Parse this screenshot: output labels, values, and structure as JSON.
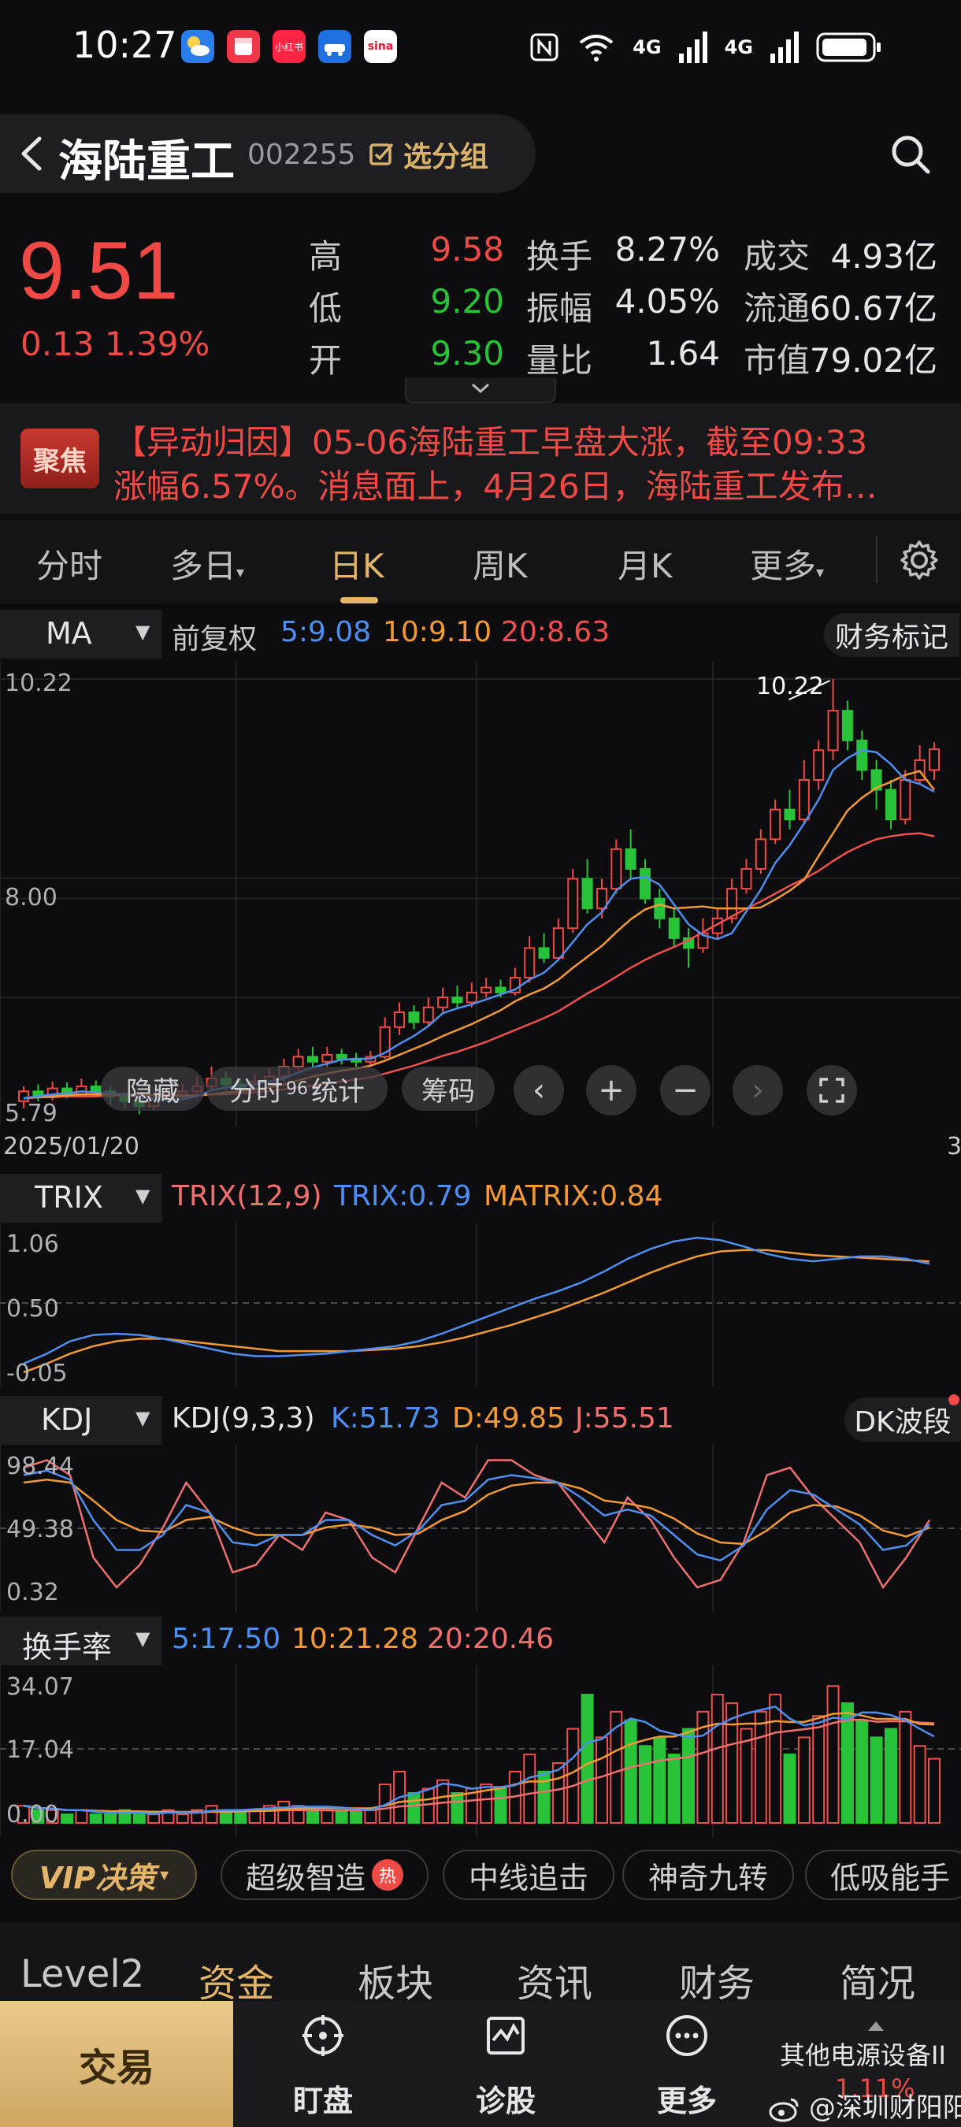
{
  "status_bar": {
    "time": "10:27",
    "net1": "4G",
    "net2": "4G",
    "notif_icons": [
      "weather-app-icon",
      "xiaohongshu-note-icon",
      "xiaohongshu-icon",
      "autohome-icon",
      "sina-icon"
    ],
    "sina_label": "sina",
    "xhs_label": "小红书"
  },
  "header": {
    "stock_name": "海陆重工",
    "stock_code": "002255",
    "group_label": "选分组"
  },
  "quote": {
    "price": "9.51",
    "change": "0.13",
    "change_pct": "1.39%",
    "stats": [
      {
        "k": "高",
        "v": "9.58",
        "tone": "up"
      },
      {
        "k": "换手",
        "v": "8.27%",
        "tone": "neutral"
      },
      {
        "k": "成交",
        "v": "4.93亿",
        "tone": "neutral"
      },
      {
        "k": "低",
        "v": "9.20",
        "tone": "down"
      },
      {
        "k": "振幅",
        "v": "4.05%",
        "tone": "neutral"
      },
      {
        "k": "流通",
        "v": "60.67亿",
        "tone": "neutral"
      },
      {
        "k": "开",
        "v": "9.30",
        "tone": "down"
      },
      {
        "k": "量比",
        "v": "1.64",
        "tone": "neutral"
      },
      {
        "k": "市值",
        "v": "79.02亿",
        "tone": "neutral"
      }
    ]
  },
  "news": {
    "badge": "聚焦",
    "line1": "【异动归因】05-06海陆重工早盘大涨，截至09:33",
    "line2": "涨幅6.57%。消息面上，4月26日，海陆重工发布…"
  },
  "period_tabs": {
    "tabs": [
      "分时",
      "多日",
      "日K",
      "周K",
      "月K",
      "更多"
    ],
    "active": "日K"
  },
  "kline": {
    "indicator": "MA",
    "adjust": "前复权",
    "ma5": "5:9.08",
    "ma10": "10:9.10",
    "ma20": "20:8.63",
    "finance_mark": "财务标记",
    "y_top": "10.22",
    "y_mid": "8.00",
    "y_bottom": "5.79",
    "high_label": "10.22",
    "start_date": "2025/01/20",
    "end_date_partial": "3",
    "overlay_buttons": [
      "隐藏",
      "分时",
      "统计",
      "筹码"
    ],
    "overlay_small": "96"
  },
  "trix": {
    "indicator": "TRIX",
    "params": "TRIX(12,9)",
    "trix_val": "TRIX:0.79",
    "matrix_val": "MATRIX:0.84",
    "y_top": "1.06",
    "y_mid": "0.50",
    "y_bottom": "-0.05"
  },
  "kdj": {
    "indicator": "KDJ",
    "params": "KDJ(9,3,3)",
    "k": "K:51.73",
    "d": "D:49.85",
    "j": "J:55.51",
    "dk_btn": "DK波段",
    "y_top": "98.44",
    "y_mid": "49.38",
    "y_bottom": "0.32"
  },
  "turnover": {
    "indicator": "换手率",
    "ma5": "5:17.50",
    "ma10": "10:21.28",
    "ma20": "20:20.46",
    "y_top": "34.07",
    "y_mid": "17.04",
    "y_bottom": "0.00"
  },
  "chart_data": {
    "type": "candlestick",
    "title": "",
    "y_range": [
      5.79,
      10.22
    ],
    "y_ticks": [
      "10.22",
      "8.00",
      "5.79"
    ],
    "x_labels": [
      "2025/01/20"
    ],
    "candles": [
      [
        5.95,
        6.05,
        6.1,
        5.88
      ],
      [
        6.05,
        6.0,
        6.12,
        5.95
      ],
      [
        6.0,
        6.08,
        6.15,
        5.96
      ],
      [
        6.08,
        6.02,
        6.14,
        5.98
      ],
      [
        6.02,
        6.1,
        6.18,
        5.99
      ],
      [
        6.1,
        6.05,
        6.16,
        6.0
      ],
      [
        6.05,
        6.0,
        6.1,
        5.92
      ],
      [
        6.0,
        5.95,
        6.05,
        5.88
      ],
      [
        5.95,
        5.9,
        6.0,
        5.82
      ],
      [
        5.9,
        5.98,
        6.04,
        5.86
      ],
      [
        5.98,
        6.02,
        6.08,
        5.94
      ],
      [
        6.02,
        6.05,
        6.12,
        5.98
      ],
      [
        6.05,
        6.1,
        6.2,
        6.0
      ],
      [
        6.1,
        6.18,
        6.3,
        6.05
      ],
      [
        6.18,
        6.12,
        6.25,
        6.06
      ],
      [
        6.12,
        6.08,
        6.18,
        6.02
      ],
      [
        6.08,
        6.15,
        6.22,
        6.04
      ],
      [
        6.15,
        6.2,
        6.28,
        6.1
      ],
      [
        6.2,
        6.3,
        6.38,
        6.15
      ],
      [
        6.3,
        6.4,
        6.48,
        6.26
      ],
      [
        6.4,
        6.35,
        6.5,
        6.3
      ],
      [
        6.35,
        6.42,
        6.5,
        6.3
      ],
      [
        6.42,
        6.38,
        6.48,
        6.32
      ],
      [
        6.38,
        6.35,
        6.44,
        6.3
      ],
      [
        6.35,
        6.4,
        6.46,
        6.32
      ],
      [
        6.4,
        6.7,
        6.8,
        6.38
      ],
      [
        6.7,
        6.85,
        6.95,
        6.62
      ],
      [
        6.85,
        6.75,
        6.92,
        6.68
      ],
      [
        6.75,
        6.9,
        7.0,
        6.7
      ],
      [
        6.9,
        7.0,
        7.1,
        6.85
      ],
      [
        7.0,
        6.95,
        7.12,
        6.88
      ],
      [
        6.95,
        7.05,
        7.15,
        6.9
      ],
      [
        7.05,
        7.1,
        7.2,
        7.0
      ],
      [
        7.1,
        7.05,
        7.18,
        7.0
      ],
      [
        7.05,
        7.2,
        7.3,
        7.02
      ],
      [
        7.2,
        7.5,
        7.62,
        7.15
      ],
      [
        7.5,
        7.4,
        7.65,
        7.35
      ],
      [
        7.4,
        7.7,
        7.8,
        7.38
      ],
      [
        7.7,
        8.2,
        8.3,
        7.65
      ],
      [
        8.2,
        7.9,
        8.4,
        7.85
      ],
      [
        7.9,
        8.1,
        8.2,
        7.8
      ],
      [
        8.1,
        8.5,
        8.6,
        8.05
      ],
      [
        8.5,
        8.3,
        8.7,
        8.2
      ],
      [
        8.3,
        8.0,
        8.4,
        7.95
      ],
      [
        8.0,
        7.8,
        8.1,
        7.7
      ],
      [
        7.8,
        7.6,
        7.9,
        7.5
      ],
      [
        7.6,
        7.5,
        7.7,
        7.3
      ],
      [
        7.5,
        7.65,
        7.8,
        7.45
      ],
      [
        7.65,
        7.8,
        7.9,
        7.6
      ],
      [
        7.8,
        8.1,
        8.2,
        7.75
      ],
      [
        8.1,
        8.3,
        8.4,
        8.05
      ],
      [
        8.3,
        8.6,
        8.7,
        8.25
      ],
      [
        8.6,
        8.9,
        9.0,
        8.55
      ],
      [
        8.9,
        8.8,
        9.1,
        8.7
      ],
      [
        8.8,
        9.2,
        9.4,
        8.75
      ],
      [
        9.2,
        9.5,
        9.6,
        9.1
      ],
      [
        9.5,
        9.9,
        10.22,
        9.4
      ],
      [
        9.9,
        9.6,
        10.0,
        9.5
      ],
      [
        9.6,
        9.3,
        9.7,
        9.2
      ],
      [
        9.3,
        9.1,
        9.4,
        8.9
      ],
      [
        9.1,
        8.8,
        9.2,
        8.7
      ],
      [
        8.8,
        9.2,
        9.3,
        8.75
      ],
      [
        9.2,
        9.4,
        9.55,
        9.15
      ],
      [
        9.3,
        9.51,
        9.58,
        9.2
      ]
    ],
    "ma5": [
      5.98,
      6.0,
      6.02,
      6.03,
      6.05,
      6.04,
      6.03,
      6.02,
      5.99,
      5.97,
      5.96,
      5.97,
      6.0,
      6.06,
      6.09,
      6.11,
      6.12,
      6.15,
      6.18,
      6.24,
      6.29,
      6.33,
      6.37,
      6.38,
      6.38,
      6.44,
      6.53,
      6.61,
      6.71,
      6.84,
      6.89,
      6.93,
      6.98,
      7.03,
      7.08,
      7.18,
      7.25,
      7.38,
      7.56,
      7.74,
      7.86,
      8.08,
      8.2,
      8.22,
      8.14,
      7.94,
      7.74,
      7.63,
      7.59,
      7.65,
      7.87,
      8.09,
      8.36,
      8.54,
      8.76,
      9.0,
      9.3,
      9.42,
      9.5,
      9.48,
      9.36,
      9.2,
      9.16,
      9.08
    ],
    "ma10": [
      5.98,
      5.99,
      6.0,
      6.01,
      6.02,
      6.02,
      6.02,
      6.02,
      6.02,
      6.01,
      6.0,
      6.0,
      6.01,
      6.02,
      6.04,
      6.05,
      6.07,
      6.09,
      6.12,
      6.16,
      6.2,
      6.23,
      6.26,
      6.28,
      6.31,
      6.36,
      6.42,
      6.48,
      6.54,
      6.61,
      6.67,
      6.73,
      6.8,
      6.87,
      6.96,
      7.03,
      7.09,
      7.18,
      7.3,
      7.41,
      7.52,
      7.66,
      7.79,
      7.89,
      7.94,
      7.9,
      7.91,
      7.92,
      7.9,
      7.9,
      7.9,
      7.91,
      7.99,
      8.08,
      8.19,
      8.43,
      8.66,
      8.89,
      9.02,
      9.12,
      9.18,
      9.25,
      9.29,
      9.1
    ],
    "ma20": [
      5.98,
      5.99,
      5.99,
      6.0,
      6.0,
      6.0,
      6.01,
      6.01,
      6.01,
      6.01,
      6.01,
      6.01,
      6.01,
      6.02,
      6.02,
      6.03,
      6.04,
      6.05,
      6.07,
      6.09,
      6.11,
      6.13,
      6.15,
      6.17,
      6.19,
      6.23,
      6.27,
      6.31,
      6.36,
      6.41,
      6.45,
      6.5,
      6.55,
      6.61,
      6.67,
      6.73,
      6.79,
      6.86,
      6.95,
      7.04,
      7.12,
      7.21,
      7.3,
      7.38,
      7.45,
      7.51,
      7.58,
      7.66,
      7.74,
      7.82,
      7.9,
      7.97,
      8.05,
      8.13,
      8.2,
      8.28,
      8.38,
      8.47,
      8.54,
      8.6,
      8.63,
      8.65,
      8.66,
      8.63
    ]
  }
}
